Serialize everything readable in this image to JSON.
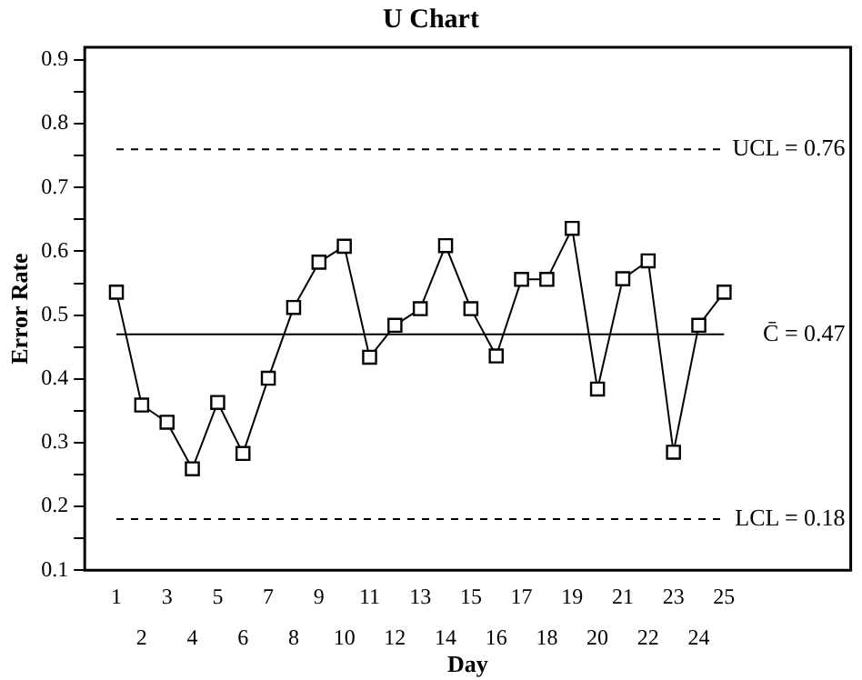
{
  "chart_data": {
    "type": "line",
    "title": "U Chart",
    "xlabel": "Day",
    "ylabel": "Error Rate",
    "x": [
      1,
      2,
      3,
      4,
      5,
      6,
      7,
      8,
      9,
      10,
      11,
      12,
      13,
      14,
      15,
      16,
      17,
      18,
      19,
      20,
      21,
      22,
      23,
      24,
      25
    ],
    "series": [
      {
        "color": "#000000",
        "values": [
          0.536,
          0.359,
          0.332,
          0.259,
          0.363,
          0.283,
          0.401,
          0.512,
          0.583,
          0.608,
          0.434,
          0.484,
          0.51,
          0.609,
          0.51,
          0.436,
          0.556,
          0.556,
          0.636,
          0.384,
          0.557,
          0.585,
          0.285,
          0.484,
          0.536
        ]
      }
    ],
    "xlim": [
      -0.25,
      30
    ],
    "xticks": [
      1,
      3,
      5,
      7,
      9,
      11,
      13,
      15,
      17,
      19,
      21,
      23,
      25
    ],
    "x2lim": [
      -0.25,
      30
    ],
    "x2ticks": [
      2,
      4,
      6,
      8,
      10,
      12,
      14,
      16,
      18,
      20,
      22,
      24
    ],
    "ylim": [
      0.1,
      0.92
    ],
    "yticks": [
      0.1,
      {
        "value": 0.15,
        "label": null
      },
      0.2,
      {
        "value": 0.25,
        "label": null
      },
      0.3,
      {
        "value": 0.35,
        "label": null
      },
      0.4,
      {
        "value": 0.45,
        "label": null
      },
      0.5,
      {
        "value": 0.55,
        "label": null
      },
      0.6,
      {
        "value": 0.65,
        "label": null
      },
      0.7,
      {
        "value": 0.75,
        "label": null
      },
      0.8,
      {
        "value": 0.85,
        "label": null
      },
      0.9
    ],
    "ref_lines": [
      {
        "axis": "y",
        "value": 0.76,
        "label": "UCL = 0.76",
        "line_style": "dashed",
        "color": "#000000"
      },
      {
        "axis": "y",
        "value": 0.47,
        "label": "C̄ = 0.47",
        "line_style": "solid",
        "color": "#000000"
      },
      {
        "axis": "y",
        "value": 0.18,
        "label": "LCL = 0.18",
        "line_style": "dashed",
        "color": "#000000"
      }
    ],
    "marker": "square",
    "line_style": "solid",
    "grid": false,
    "legend": false
  }
}
